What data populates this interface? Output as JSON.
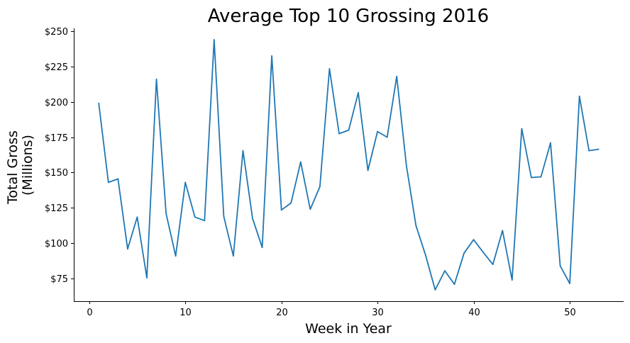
{
  "chart_data": {
    "type": "line",
    "title": "Average Top 10 Grossing 2016",
    "xlabel": "Week in Year",
    "ylabel_lines": [
      "Total Gross",
      "(Millions)"
    ],
    "xlim": [
      -1.6,
      55.6
    ],
    "ylim": [
      59,
      252
    ],
    "xticks": [
      0,
      10,
      20,
      30,
      40,
      50
    ],
    "xtick_labels": [
      "0",
      "10",
      "20",
      "30",
      "40",
      "50"
    ],
    "yticks": [
      75,
      100,
      125,
      150,
      175,
      200,
      225,
      250
    ],
    "ytick_labels": [
      "$75",
      "$100",
      "$125",
      "$150",
      "$175",
      "$200",
      "$225",
      "$250"
    ],
    "grid": false,
    "series_color": "#1f77b4",
    "x": [
      1,
      2,
      3,
      4,
      5,
      6,
      7,
      8,
      9,
      10,
      11,
      12,
      13,
      14,
      15,
      16,
      17,
      18,
      19,
      20,
      21,
      22,
      23,
      24,
      25,
      26,
      27,
      28,
      29,
      30,
      31,
      32,
      33,
      34,
      35,
      36,
      37,
      38,
      39,
      40,
      41,
      42,
      43,
      44,
      45,
      46,
      47,
      48,
      49,
      50,
      51,
      52,
      53
    ],
    "y": [
      199,
      143,
      145.5,
      96,
      118.5,
      75.5,
      216,
      121,
      91,
      143,
      118.5,
      116,
      244,
      119,
      91,
      165.5,
      117.5,
      97,
      232.5,
      123.5,
      128.5,
      157.5,
      124,
      140,
      223.5,
      177.5,
      180,
      206.5,
      151.5,
      179,
      175,
      218,
      155,
      112.5,
      91.5,
      67,
      80.5,
      71,
      93,
      102.5,
      93.5,
      85,
      109,
      74,
      181,
      146.5,
      147,
      171,
      84,
      71.5,
      204,
      165.5,
      166.5
    ]
  }
}
